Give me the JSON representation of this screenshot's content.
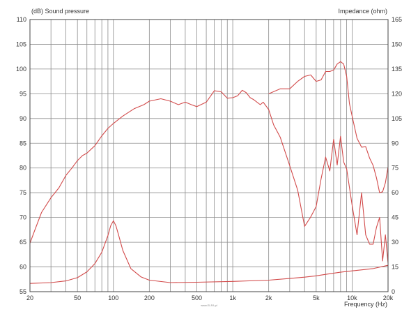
{
  "chart_data": {
    "type": "line",
    "left_axis_title": "(dB)  Sound pressure",
    "right_axis_title": "Impedance  (ohm)",
    "xlabel": "Frequency  (Hz)",
    "watermark": "www.ELFA.pl",
    "x_scale": "log",
    "xlim": [
      20,
      20000
    ],
    "ylim_left": [
      55,
      110
    ],
    "ylim_right": [
      0,
      165
    ],
    "grid": true,
    "x_ticks": [
      {
        "value": 20,
        "label": "20"
      },
      {
        "value": 50,
        "label": "50"
      },
      {
        "value": 100,
        "label": "100"
      },
      {
        "value": 200,
        "label": "200"
      },
      {
        "value": 500,
        "label": "500"
      },
      {
        "value": 1000,
        "label": "1k"
      },
      {
        "value": 2000,
        "label": "2k"
      },
      {
        "value": 5000,
        "label": "5k"
      },
      {
        "value": 10000,
        "label": "10k"
      },
      {
        "value": 20000,
        "label": "20k"
      }
    ],
    "y_ticks_left": [
      "55",
      "60",
      "65",
      "70",
      "75",
      "80",
      "85",
      "90",
      "95",
      "100",
      "105",
      "110"
    ],
    "y_ticks_right": [
      "0",
      "15",
      "30",
      "45",
      "60",
      "75",
      "90",
      "105",
      "120",
      "135",
      "150",
      "165"
    ],
    "line_color": "#d24a4a",
    "series": [
      {
        "axis": "left",
        "x": [
          20,
          22,
          25,
          30,
          35,
          40,
          45,
          50,
          55,
          60,
          70,
          80,
          90,
          100,
          120,
          150,
          180,
          200,
          250,
          300,
          350,
          400,
          450,
          500,
          600,
          700,
          800,
          900,
          1000,
          1100,
          1200,
          1300,
          1400,
          1500,
          1700,
          1800,
          2000,
          2200,
          2500,
          3000,
          3500,
          4000,
          4500,
          5000,
          5500,
          6000,
          6500,
          7000,
          7500,
          8000,
          8500,
          9000,
          10000,
          11000,
          12000,
          13000,
          14000,
          15000,
          16000,
          17000,
          18000,
          19000,
          20000
        ],
        "y": [
          64.8,
          67.5,
          71,
          74,
          76,
          78.5,
          80,
          81.5,
          82.5,
          83,
          84.5,
          86.5,
          88,
          89,
          90.5,
          92,
          92.8,
          93.5,
          94,
          93.5,
          92.8,
          93.3,
          92.8,
          92.4,
          93.3,
          95.6,
          95.4,
          94.1,
          94.2,
          94.6,
          95.7,
          95.2,
          94.2,
          93.8,
          92.8,
          93.3,
          91.8,
          88.7,
          86.2,
          80.5,
          75.5,
          68.2,
          70.1,
          72.2,
          77.8,
          82.2,
          79.4,
          85.8,
          80.6,
          86.4,
          81.2,
          79.8,
          72.5,
          66.5,
          75,
          66.5,
          64.6,
          64.6,
          68,
          70,
          61.2,
          66.5,
          60.8
        ]
      },
      {
        "axis": "right",
        "x": [
          20,
          30,
          40,
          50,
          60,
          70,
          80,
          90,
          95,
          100,
          105,
          110,
          120,
          140,
          170,
          200,
          300,
          500,
          1000,
          2000,
          3000,
          4000,
          5000,
          6000,
          8000,
          10000,
          15000,
          20000
        ],
        "y": [
          5,
          5.5,
          6.5,
          8.5,
          12,
          17,
          24,
          34,
          40,
          43,
          40,
          35,
          25,
          14,
          9,
          7,
          5.5,
          5.7,
          6.2,
          7,
          8,
          8.8,
          9.6,
          10.5,
          11.8,
          12.6,
          14,
          16
        ]
      },
      {
        "axis": "left",
        "x": [
          2000,
          2500,
          3000,
          3500,
          4000,
          4500,
          5000,
          5500,
          6000,
          6500,
          7000,
          7500,
          8000,
          8500,
          9000,
          9500,
          10000,
          11000,
          12000,
          13000,
          14000,
          15000,
          16000,
          17000,
          18000,
          19000,
          20000
        ],
        "y": [
          95,
          96,
          96,
          97.5,
          98.5,
          98.8,
          97.5,
          97.8,
          99.5,
          99.5,
          99.8,
          101,
          101.5,
          101,
          98.5,
          93,
          90.5,
          86,
          84.2,
          84.3,
          82,
          80.5,
          78,
          75,
          75.2,
          77,
          80.2
        ]
      }
    ]
  }
}
